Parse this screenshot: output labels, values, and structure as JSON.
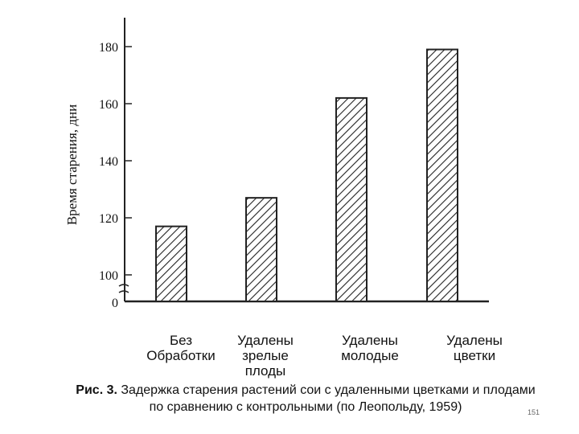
{
  "chart_data": {
    "type": "bar",
    "ylabel": "Время старения, дни",
    "y_ticks": [
      100,
      120,
      140,
      160,
      180
    ],
    "y_break_label": "0",
    "y_axis_break": true,
    "ylim": [
      95,
      185
    ],
    "categories": [
      "Без\nОбработки",
      "Удалены\nзрелые\nплоды",
      "Удалены\nмолодые",
      "Удалены\nцветки"
    ],
    "values": [
      117,
      127,
      162,
      179
    ],
    "bar_fill": "diagonal hatch",
    "grid": false
  },
  "caption": {
    "label": "Рис. 3.",
    "text": " Задержка старения растений сои с удаленными цветками и плодами",
    "line2": "по сравнению с контрольными (по Леопольду, 1959)"
  },
  "page_number": "151"
}
